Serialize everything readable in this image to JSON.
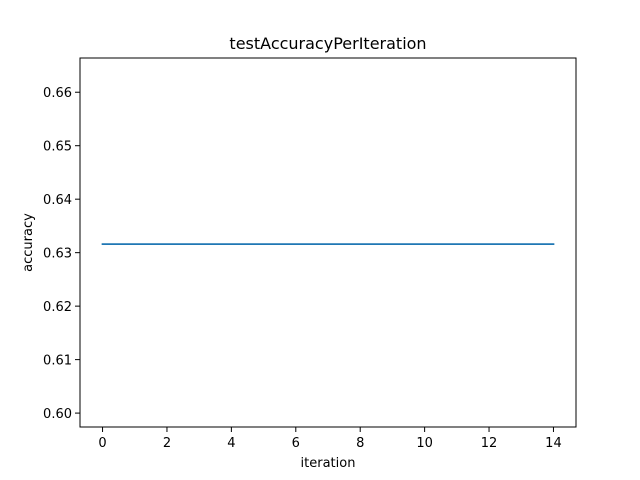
{
  "chart_data": {
    "type": "line",
    "title": "testAccuracyPerIteration",
    "xlabel": "iteration",
    "ylabel": "accuracy",
    "xlim": [
      -0.7,
      14.7
    ],
    "ylim": [
      0.5974,
      0.6664
    ],
    "xticks": [
      0,
      2,
      4,
      6,
      8,
      10,
      12,
      14
    ],
    "yticks": [
      0.6,
      0.61,
      0.62,
      0.63,
      0.64,
      0.65,
      0.66
    ],
    "grid": false,
    "series": [
      {
        "color": "#1f77b4",
        "x": [
          0,
          1,
          2,
          3,
          4,
          5,
          6,
          7,
          8,
          9,
          10,
          11,
          12,
          13,
          14
        ],
        "y": [
          0.6316,
          0.6316,
          0.6316,
          0.6316,
          0.6316,
          0.6316,
          0.6316,
          0.6316,
          0.6316,
          0.6316,
          0.6316,
          0.6316,
          0.6316,
          0.6316,
          0.6316
        ]
      }
    ]
  }
}
